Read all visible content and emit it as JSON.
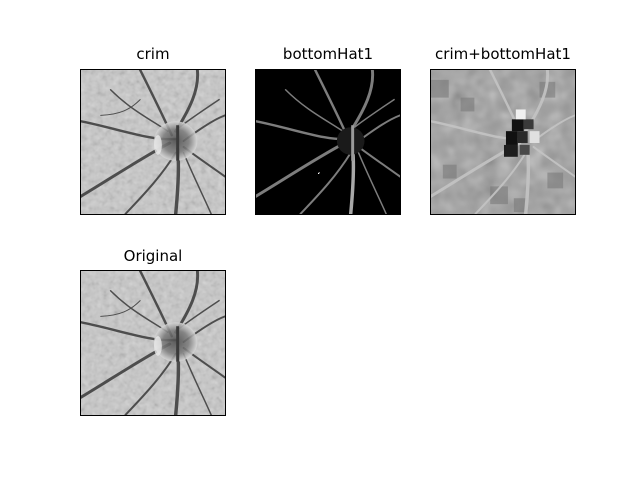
{
  "panels": [
    {
      "title": "crim"
    },
    {
      "title": "bottomHat1"
    },
    {
      "title": "crim+bottomHat1"
    },
    {
      "title": "Original"
    }
  ]
}
